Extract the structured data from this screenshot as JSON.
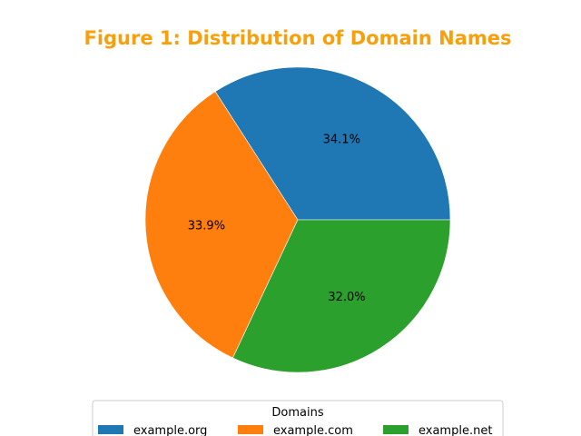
{
  "colors": {
    "title": "#f5a00c",
    "slice_edge": "#ffffff",
    "legend_border": "#cccccc"
  },
  "chart_data": {
    "type": "pie",
    "title": "Figure 1: Distribution of Domain Names",
    "categories": [
      "example.org",
      "example.com",
      "example.net"
    ],
    "values": [
      34.1,
      33.9,
      32.0
    ],
    "labels": [
      "34.1%",
      "33.9%",
      "32.0%"
    ],
    "colors": [
      "#1f77b4",
      "#ff7f0e",
      "#2ca02c"
    ],
    "start_angle_deg": 0,
    "direction": "counterclockwise",
    "legend": {
      "title": "Domains",
      "placement": "bottom-center",
      "columns": 3
    }
  }
}
